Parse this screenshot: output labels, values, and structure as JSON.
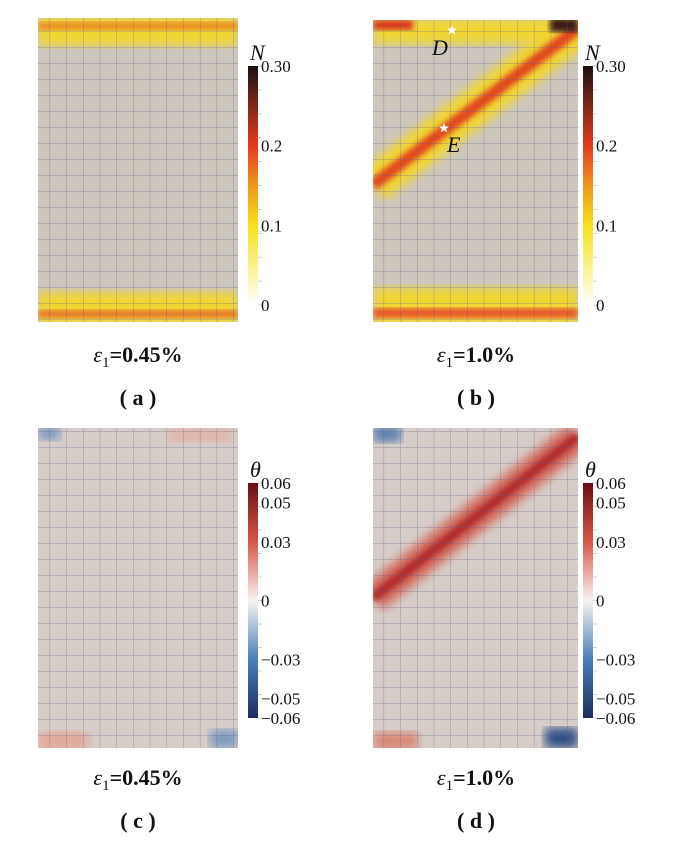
{
  "panels": [
    {
      "id": "a",
      "caption": "ε1=0.45%",
      "eps": "ε",
      "sub": "1",
      "val": "=0.45%",
      "label": "( a )",
      "field": "N"
    },
    {
      "id": "b",
      "caption": "ε1=1.0%",
      "eps": "ε",
      "sub": "1",
      "val": "=1.0%",
      "label": "( b )",
      "field": "N",
      "markers": [
        "D",
        "E"
      ]
    },
    {
      "id": "c",
      "caption": "ε1=0.45%",
      "eps": "ε",
      "sub": "1",
      "val": "=0.45%",
      "label": "( c )",
      "field": "θ"
    },
    {
      "id": "d",
      "caption": "ε1=1.0%",
      "eps": "ε",
      "sub": "1",
      "val": "=1.0%",
      "label": "( d )",
      "field": "θ"
    }
  ],
  "colorbar_N": {
    "title": "N",
    "range": [
      0,
      0.3
    ],
    "ticks": [
      {
        "v": 0.3,
        "t": "0.30"
      },
      {
        "v": 0.2,
        "t": "0.2"
      },
      {
        "v": 0.1,
        "t": "0.1"
      },
      {
        "v": 0,
        "t": "0"
      }
    ],
    "colors": [
      "#ffffff",
      "#f5e21a",
      "#e23a1f",
      "#1a1212"
    ]
  },
  "colorbar_theta": {
    "title": "θ",
    "range": [
      -0.06,
      0.06
    ],
    "ticks": [
      {
        "v": 0.06,
        "t": "0.06"
      },
      {
        "v": 0.05,
        "t": "0.05"
      },
      {
        "v": 0.03,
        "t": "0.03"
      },
      {
        "v": 0,
        "t": "0"
      },
      {
        "v": -0.03,
        "t": "−0.03"
      },
      {
        "v": -0.05,
        "t": "−0.05"
      },
      {
        "v": -0.06,
        "t": "−0.06"
      }
    ],
    "colors": [
      "#1d2d5e",
      "#4a7fb8",
      "#f7f3f2",
      "#c8393a",
      "#6b0d12"
    ]
  }
}
